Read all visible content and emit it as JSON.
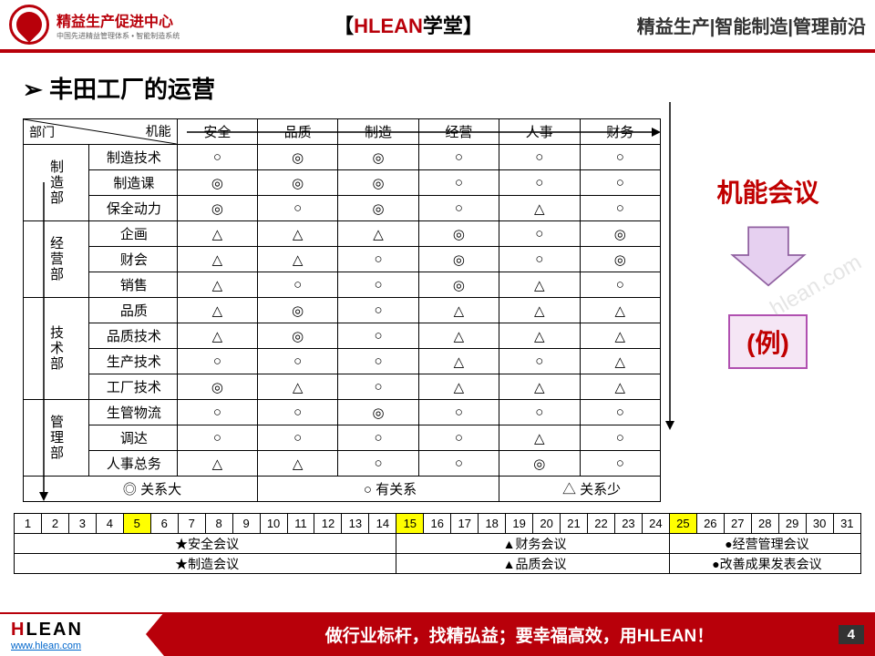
{
  "header": {
    "logo_title": "精益生产促进中心",
    "logo_sub": "中国先进精益管理体系 • 智能制造系统",
    "center_prefix": "【",
    "center_brand": "HLEAN",
    "center_suffix": "学堂】",
    "right": "精益生产|智能制造|管理前沿"
  },
  "slide_title": "丰田工厂的运营",
  "matrix": {
    "diag_top": "机能",
    "diag_bot": "部门",
    "cols": [
      "安全",
      "品质",
      "制造",
      "经营",
      "人事",
      "财务"
    ],
    "groups": [
      {
        "name": "制造部",
        "rows": [
          {
            "label": "制造技术",
            "v": [
              "○",
              "◎",
              "◎",
              "○",
              "○",
              "○"
            ]
          },
          {
            "label": "制造课",
            "v": [
              "◎",
              "◎",
              "◎",
              "○",
              "○",
              "○"
            ]
          },
          {
            "label": "保全动力",
            "v": [
              "◎",
              "○",
              "◎",
              "○",
              "△",
              "○"
            ]
          }
        ]
      },
      {
        "name": "经营部",
        "rows": [
          {
            "label": "企画",
            "v": [
              "△",
              "△",
              "△",
              "◎",
              "○",
              "◎"
            ]
          },
          {
            "label": "财会",
            "v": [
              "△",
              "△",
              "○",
              "◎",
              "○",
              "◎"
            ]
          },
          {
            "label": "销售",
            "v": [
              "△",
              "○",
              "○",
              "◎",
              "△",
              "○"
            ]
          }
        ]
      },
      {
        "name": "技术部",
        "rows": [
          {
            "label": "品质",
            "v": [
              "△",
              "◎",
              "○",
              "△",
              "△",
              "△"
            ]
          },
          {
            "label": "品质技术",
            "v": [
              "△",
              "◎",
              "○",
              "△",
              "△",
              "△"
            ]
          },
          {
            "label": "生产技术",
            "v": [
              "○",
              "○",
              "○",
              "△",
              "○",
              "△"
            ]
          },
          {
            "label": "工厂技术",
            "v": [
              "◎",
              "△",
              "○",
              "△",
              "△",
              "△"
            ]
          }
        ]
      },
      {
        "name": "管理部",
        "rows": [
          {
            "label": "生管物流",
            "v": [
              "○",
              "○",
              "◎",
              "○",
              "○",
              "○"
            ]
          },
          {
            "label": "调达",
            "v": [
              "○",
              "○",
              "○",
              "○",
              "△",
              "○"
            ]
          },
          {
            "label": "人事总务",
            "v": [
              "△",
              "△",
              "○",
              "○",
              "◎",
              "○"
            ]
          }
        ]
      }
    ],
    "legend": [
      "◎ 关系大",
      "○ 有关系",
      "△ 关系少"
    ]
  },
  "side": {
    "label": "机能会议",
    "example": "(例)",
    "arrow_fill": "#e6d0f0",
    "arrow_stroke": "#9060a0"
  },
  "calendar": {
    "days": 31,
    "highlight": [
      5,
      15,
      25
    ],
    "events": [
      [
        {
          "span": [
            1,
            14
          ],
          "txt": "★安全会议"
        },
        {
          "span": [
            15,
            24
          ],
          "txt": "▲财务会议"
        },
        {
          "span": [
            25,
            31
          ],
          "txt": "●经营管理会议"
        }
      ],
      [
        {
          "span": [
            1,
            14
          ],
          "txt": "★制造会议"
        },
        {
          "span": [
            15,
            24
          ],
          "txt": "▲品质会议"
        },
        {
          "span": [
            25,
            31
          ],
          "txt": "●改善成果发表会议"
        }
      ]
    ]
  },
  "footer": {
    "logo": "HLEAN",
    "url": "www.hlean.com",
    "slogan": "做行业标杆，找精弘益；要幸福高效，用HLEAN！",
    "page": "4"
  },
  "colors": {
    "brand_red": "#b8000a",
    "text_red": "#c00000",
    "highlight": "#ffff00"
  }
}
